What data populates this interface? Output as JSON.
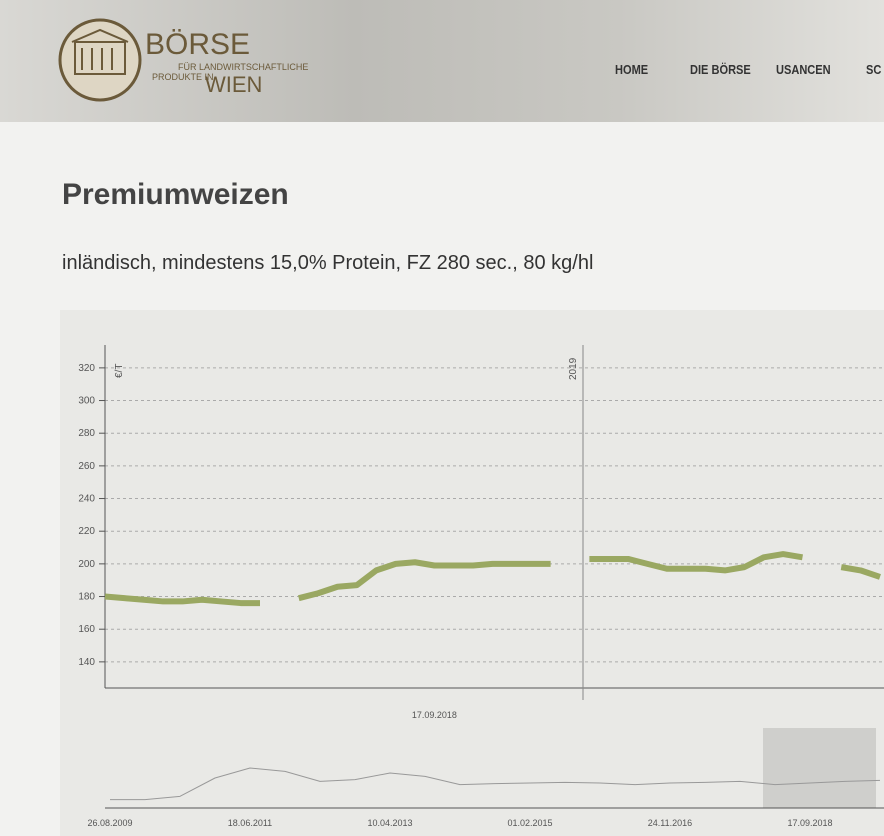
{
  "header": {
    "logo": {
      "name": "BÖRSE",
      "line1": "FÜR LANDWIRTSCHAFTLICHE",
      "line2": "PRODUKTE IN",
      "city": "WIEN"
    },
    "nav": [
      "HOME",
      "DIE BÖRSE",
      "USANCEN",
      "SC"
    ]
  },
  "page": {
    "title": "Premiumweizen",
    "subtitle": "inländisch, mindestens 15,0% Protein, FZ 280 sec., 80 kg/hl"
  },
  "chart_data": [
    {
      "type": "line",
      "y_label": "€/T",
      "annotation": "2019",
      "categories": [
        null,
        null,
        null,
        null,
        null,
        null,
        null,
        null,
        null,
        null,
        null,
        null,
        null,
        null,
        null,
        null,
        null,
        "17.09.2018",
        null,
        null,
        null,
        null,
        null,
        null,
        null,
        null,
        null,
        null,
        null,
        null,
        null,
        null,
        null,
        null,
        null,
        null,
        null,
        null,
        null,
        null,
        null
      ],
      "values": [
        180,
        179,
        178,
        177,
        177,
        178,
        177,
        176,
        176,
        null,
        179,
        182,
        186,
        187,
        196,
        200,
        201,
        199,
        199,
        199,
        200,
        200,
        200,
        200,
        null,
        203,
        203,
        203,
        200,
        197,
        197,
        197,
        196,
        198,
        204,
        206,
        204,
        null,
        198,
        196,
        192
      ],
      "color": "#9aa862",
      "ylim": [
        124,
        334
      ],
      "yticks": [
        140,
        160,
        180,
        200,
        220,
        240,
        260,
        280,
        300,
        320
      ],
      "grid": true
    },
    {
      "type": "line",
      "categories": [
        "26.08.2009",
        null,
        null,
        null,
        "18.06.2011",
        null,
        null,
        null,
        "10.04.2013",
        null,
        null,
        null,
        "01.02.2015",
        null,
        null,
        null,
        "24.11.2016",
        null,
        null,
        null,
        "17.09.2018",
        null,
        null
      ],
      "values": [
        140,
        140,
        150,
        205,
        235,
        225,
        195,
        200,
        220,
        210,
        185,
        188,
        190,
        192,
        190,
        185,
        190,
        192,
        195,
        185,
        190,
        195,
        198
      ],
      "color": "#999999"
    }
  ]
}
